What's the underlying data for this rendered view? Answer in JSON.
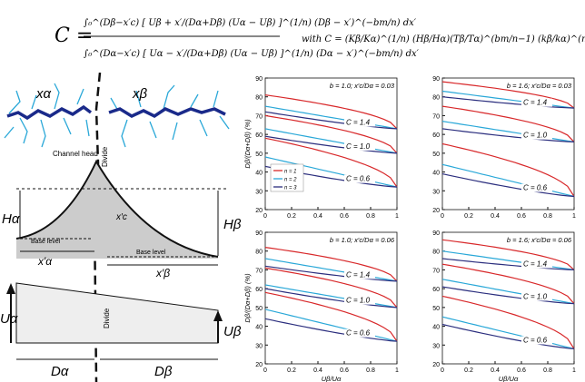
{
  "equation": {
    "lhs": "C =",
    "numerator": "∫₀^(Dβ−x′c) [ Uβ + x′/(Dα+Dβ) (Uα − Uβ) ]^(1/n) (Dβ − x′)^(−bm/n) dx′",
    "denominator": "∫₀^(Dα−x′c) [ Uα − x′/(Dα+Dβ) (Uα − Uβ) ]^(1/n) (Dα − x′)^(−bm/n) dx′",
    "with_text": "with  C = (Kβ/Kα)^(1/n) (Hβ/Hα)(Tβ/Tα)^(bm/n−1) (kβ/kα)^(m/n)"
  },
  "schematic": {
    "label_x_alpha": "xα",
    "label_x_beta": "xβ",
    "label_channel_head": "Channel head",
    "label_divide_top": "Divide",
    "label_H_alpha": "Hα",
    "label_H_beta": "Hβ",
    "label_base_level_left": "Base level",
    "label_base_level_right": "Base level",
    "label_xc": "x′c",
    "label_x_prime_alpha": "x′α",
    "label_x_prime_beta": "x′β",
    "label_U_alpha": "Uα",
    "label_U_beta": "Uβ",
    "label_divide_bottom": "Divide",
    "label_D_alpha": "Dα",
    "label_D_beta": "Dβ",
    "colors": {
      "channel_main": "#1a2a8a",
      "tributary": "#2aa8d8",
      "fill": "#cccccc"
    }
  },
  "chart_data": [
    {
      "type": "line",
      "panel": "top-left",
      "annotation": "b = 1.0; x′c/Dα = 0.03",
      "ylabel": "Dβ/(Dα+Dβ) (%)",
      "xlabel": "",
      "xlim": [
        0,
        1
      ],
      "ylim": [
        20,
        90
      ],
      "xticks": [
        "0",
        "0.2",
        "0.4",
        "0.6",
        "0.8",
        "1"
      ],
      "yticks": [
        "20",
        "30",
        "40",
        "50",
        "60",
        "70",
        "80",
        "90"
      ],
      "legend": [
        "n = 1",
        "n = 2",
        "n = 3"
      ],
      "legend_colors": [
        "#d8282a",
        "#2aa8d8",
        "#2b2e7e"
      ],
      "c_labels": [
        "C = 1.4",
        "C = 1.0",
        "C = 0.6"
      ],
      "series": [
        {
          "C": 1.4,
          "n": 1,
          "x": [
            0,
            1
          ],
          "y": [
            81,
            63
          ]
        },
        {
          "C": 1.4,
          "n": 2,
          "x": [
            0,
            1
          ],
          "y": [
            75,
            63
          ]
        },
        {
          "C": 1.4,
          "n": 3,
          "x": [
            0,
            1
          ],
          "y": [
            72,
            63
          ]
        },
        {
          "C": 1.0,
          "n": 1,
          "x": [
            0,
            1
          ],
          "y": [
            70,
            50
          ]
        },
        {
          "C": 1.0,
          "n": 2,
          "x": [
            0,
            1
          ],
          "y": [
            63,
            50
          ]
        },
        {
          "C": 1.0,
          "n": 3,
          "x": [
            0,
            1
          ],
          "y": [
            59,
            50
          ]
        },
        {
          "C": 0.6,
          "n": 1,
          "x": [
            0,
            1
          ],
          "y": [
            58,
            32
          ]
        },
        {
          "C": 0.6,
          "n": 2,
          "x": [
            0,
            1
          ],
          "y": [
            48,
            32
          ]
        },
        {
          "C": 0.6,
          "n": 3,
          "x": [
            0,
            1
          ],
          "y": [
            43,
            32
          ]
        }
      ]
    },
    {
      "type": "line",
      "panel": "top-right",
      "annotation": "b = 1.6; x′c/Dα = 0.03",
      "ylabel": "",
      "xlabel": "",
      "xlim": [
        0,
        1
      ],
      "ylim": [
        20,
        90
      ],
      "xticks": [
        "0",
        "0.2",
        "0.4",
        "0.6",
        "0.8",
        "1"
      ],
      "yticks": [
        "20",
        "30",
        "40",
        "50",
        "60",
        "70",
        "80",
        "90"
      ],
      "c_labels": [
        "C = 1.4",
        "C = 1.0",
        "C = 0.6"
      ],
      "series": [
        {
          "C": 1.4,
          "n": 1,
          "x": [
            0,
            1
          ],
          "y": [
            88,
            74
          ]
        },
        {
          "C": 1.4,
          "n": 2,
          "x": [
            0,
            1
          ],
          "y": [
            83,
            74
          ]
        },
        {
          "C": 1.4,
          "n": 3,
          "x": [
            0,
            1
          ],
          "y": [
            80,
            74
          ]
        },
        {
          "C": 1.0,
          "n": 1,
          "x": [
            0,
            1
          ],
          "y": [
            75,
            56
          ]
        },
        {
          "C": 1.0,
          "n": 2,
          "x": [
            0,
            1
          ],
          "y": [
            67,
            56
          ]
        },
        {
          "C": 1.0,
          "n": 3,
          "x": [
            0,
            1
          ],
          "y": [
            63,
            56
          ]
        },
        {
          "C": 0.6,
          "n": 1,
          "x": [
            0,
            1
          ],
          "y": [
            55,
            27
          ]
        },
        {
          "C": 0.6,
          "n": 2,
          "x": [
            0,
            1
          ],
          "y": [
            44,
            27
          ]
        },
        {
          "C": 0.6,
          "n": 3,
          "x": [
            0,
            1
          ],
          "y": [
            39,
            27
          ]
        }
      ]
    },
    {
      "type": "line",
      "panel": "bottom-left",
      "annotation": "b = 1.0; x′c/Dα = 0.06",
      "ylabel": "Dβ/(Dα+Dβ) (%)",
      "xlabel": "Uβ/Uα",
      "xlim": [
        0,
        1
      ],
      "ylim": [
        20,
        90
      ],
      "xticks": [
        "0",
        "0.2",
        "0.4",
        "0.6",
        "0.8",
        "1"
      ],
      "yticks": [
        "20",
        "30",
        "40",
        "50",
        "60",
        "70",
        "80",
        "90"
      ],
      "c_labels": [
        "C = 1.4",
        "C = 1.0",
        "C = 0.6"
      ],
      "series": [
        {
          "C": 1.4,
          "n": 1,
          "x": [
            0,
            1
          ],
          "y": [
            82,
            64
          ]
        },
        {
          "C": 1.4,
          "n": 2,
          "x": [
            0,
            1
          ],
          "y": [
            76,
            64
          ]
        },
        {
          "C": 1.4,
          "n": 3,
          "x": [
            0,
            1
          ],
          "y": [
            72,
            64
          ]
        },
        {
          "C": 1.0,
          "n": 1,
          "x": [
            0,
            1
          ],
          "y": [
            71,
            50
          ]
        },
        {
          "C": 1.0,
          "n": 2,
          "x": [
            0,
            1
          ],
          "y": [
            62,
            50
          ]
        },
        {
          "C": 1.0,
          "n": 3,
          "x": [
            0,
            1
          ],
          "y": [
            60,
            50
          ]
        },
        {
          "C": 0.6,
          "n": 1,
          "x": [
            0,
            1
          ],
          "y": [
            58,
            32
          ]
        },
        {
          "C": 0.6,
          "n": 2,
          "x": [
            0,
            1
          ],
          "y": [
            49,
            32
          ]
        },
        {
          "C": 0.6,
          "n": 3,
          "x": [
            0,
            1
          ],
          "y": [
            44,
            32
          ]
        }
      ]
    },
    {
      "type": "line",
      "panel": "bottom-right",
      "annotation": "b = 1.6; x′c/Dα = 0.06",
      "ylabel": "",
      "xlabel": "Uβ/Uα",
      "xlim": [
        0,
        1
      ],
      "ylim": [
        20,
        90
      ],
      "xticks": [
        "0",
        "0.2",
        "0.4",
        "0.6",
        "0.8",
        "1"
      ],
      "yticks": [
        "20",
        "30",
        "40",
        "50",
        "60",
        "70",
        "80",
        "90"
      ],
      "c_labels": [
        "C = 1.4",
        "C = 1.0",
        "C = 0.6"
      ],
      "series": [
        {
          "C": 1.4,
          "n": 1,
          "x": [
            0,
            1
          ],
          "y": [
            86,
            70
          ]
        },
        {
          "C": 1.4,
          "n": 2,
          "x": [
            0,
            1
          ],
          "y": [
            80,
            70
          ]
        },
        {
          "C": 1.4,
          "n": 3,
          "x": [
            0,
            1
          ],
          "y": [
            76,
            70
          ]
        },
        {
          "C": 1.0,
          "n": 1,
          "x": [
            0,
            1
          ],
          "y": [
            73,
            52
          ]
        },
        {
          "C": 1.0,
          "n": 2,
          "x": [
            0,
            1
          ],
          "y": [
            65,
            52
          ]
        },
        {
          "C": 1.0,
          "n": 3,
          "x": [
            0,
            1
          ],
          "y": [
            61,
            52
          ]
        },
        {
          "C": 0.6,
          "n": 1,
          "x": [
            0,
            1
          ],
          "y": [
            56,
            28
          ]
        },
        {
          "C": 0.6,
          "n": 2,
          "x": [
            0,
            1
          ],
          "y": [
            45,
            28
          ]
        },
        {
          "C": 0.6,
          "n": 3,
          "x": [
            0,
            1
          ],
          "y": [
            41,
            28
          ]
        }
      ]
    }
  ]
}
